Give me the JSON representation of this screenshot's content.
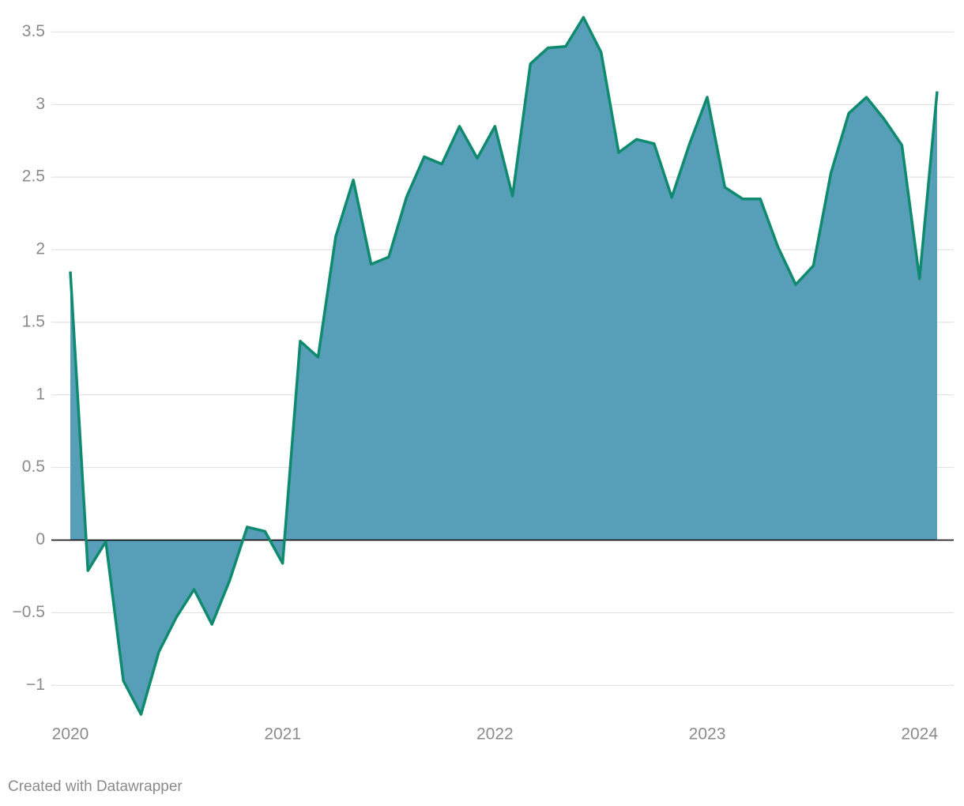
{
  "chart_data": {
    "type": "area",
    "x": [
      2020,
      2020.083,
      2020.167,
      2020.25,
      2020.333,
      2020.417,
      2020.5,
      2020.583,
      2020.667,
      2020.75,
      2020.833,
      2020.917,
      2021,
      2021.083,
      2021.167,
      2021.25,
      2021.333,
      2021.417,
      2021.5,
      2021.583,
      2021.667,
      2021.75,
      2021.833,
      2021.917,
      2022,
      2022.083,
      2022.167,
      2022.25,
      2022.333,
      2022.417,
      2022.5,
      2022.583,
      2022.667,
      2022.75,
      2022.833,
      2022.917,
      2023,
      2023.083,
      2023.167,
      2023.25,
      2023.333,
      2023.417,
      2023.5,
      2023.583,
      2023.667,
      2023.75,
      2023.833,
      2023.917,
      2024,
      2024.083
    ],
    "values": [
      1.85,
      -0.21,
      -0.01,
      -0.97,
      -1.2,
      -0.77,
      -0.53,
      -0.34,
      -0.58,
      -0.28,
      0.09,
      0.06,
      -0.16,
      1.37,
      1.26,
      2.09,
      2.48,
      1.9,
      1.95,
      2.36,
      2.64,
      2.59,
      2.85,
      2.63,
      2.85,
      2.37,
      3.28,
      3.39,
      3.4,
      3.6,
      3.36,
      2.67,
      2.76,
      2.73,
      2.36,
      2.73,
      3.05,
      2.43,
      2.35,
      2.35,
      2.02,
      1.76,
      1.89,
      2.53,
      2.94,
      3.05,
      2.9,
      2.72,
      1.8,
      3.09
    ],
    "color": "#0f8a6e",
    "fill": "#579fb9",
    "xlim": [
      2020,
      2024.083
    ],
    "xticks": [
      2020,
      2021,
      2022,
      2023,
      2024
    ],
    "ylim": [
      -1.2,
      3.6
    ],
    "yticks": [
      {
        "value": -1,
        "label": "−1"
      },
      {
        "value": -0.5,
        "label": "−0.5"
      },
      0,
      0.5,
      1,
      1.5,
      2,
      2.5,
      3,
      3.5
    ],
    "grid": true,
    "footer": "Created with Datawrapper"
  }
}
